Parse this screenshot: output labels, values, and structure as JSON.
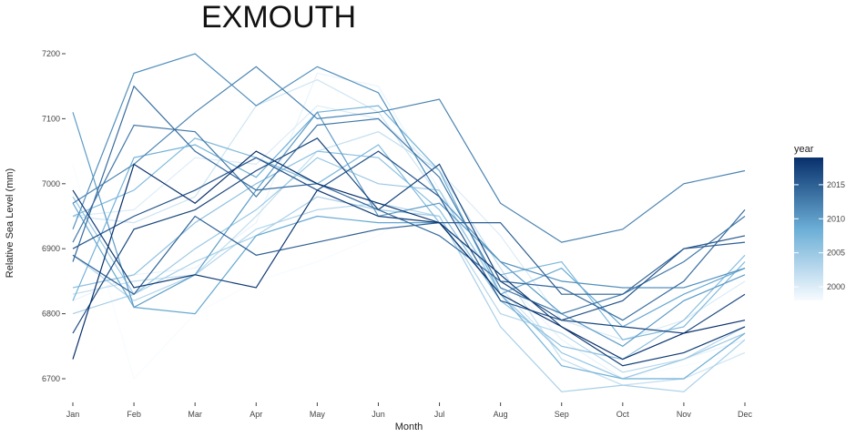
{
  "chart_data": {
    "type": "line",
    "title": "EXMOUTH",
    "xlabel": "Month",
    "ylabel": "Relative Sea Level (mm)",
    "categories": [
      "Jan",
      "Feb",
      "Mar",
      "Apr",
      "May",
      "Jun",
      "Jul",
      "Aug",
      "Sep",
      "Oct",
      "Nov",
      "Dec"
    ],
    "ylim": [
      6670,
      7230
    ],
    "yticks": [
      6700,
      6800,
      6900,
      7000,
      7100,
      7200
    ],
    "grid": false,
    "legend": {
      "title": "year",
      "position": "right",
      "type": "colorbar",
      "ticks": [
        2000,
        2005,
        2010,
        2015
      ],
      "range": [
        1998,
        2019
      ],
      "color_low": "#f7fbff",
      "color_high": "#08306b"
    },
    "series": [
      {
        "year": 1998,
        "values": [
          7030,
          6700,
          6800,
          6850,
          6880,
          6920,
          6980,
          6880,
          6760,
          6700,
          6720,
          6740
        ]
      },
      {
        "year": 1999,
        "values": [
          6820,
          6860,
          6870,
          6940,
          7170,
          7150,
          6990,
          6860,
          6760,
          6700,
          6730,
          6760
        ]
      },
      {
        "year": 2000,
        "values": [
          6950,
          6960,
          7040,
          7030,
          7120,
          7100,
          7020,
          6920,
          6790,
          6760,
          6790,
          6850
        ]
      },
      {
        "year": 2001,
        "values": [
          6950,
          6940,
          6980,
          7120,
          7160,
          7110,
          6980,
          6840,
          6740,
          6700,
          6700,
          6740
        ]
      },
      {
        "year": 2002,
        "values": [
          6830,
          6850,
          6860,
          6950,
          7050,
          7080,
          7020,
          6870,
          6730,
          6690,
          6700,
          6770
        ]
      },
      {
        "year": 2003,
        "values": [
          6890,
          6820,
          6860,
          6930,
          6960,
          6970,
          6950,
          6800,
          6770,
          6710,
          6730,
          6780
        ]
      },
      {
        "year": 2004,
        "values": [
          6800,
          6830,
          6880,
          6920,
          6980,
          6960,
          6950,
          6780,
          6680,
          6690,
          6680,
          6760
        ]
      },
      {
        "year": 2005,
        "values": [
          6980,
          6830,
          6900,
          6960,
          7040,
          7000,
          6990,
          6830,
          6740,
          6700,
          6730,
          6770
        ]
      },
      {
        "year": 2006,
        "values": [
          6840,
          6860,
          6940,
          7000,
          7050,
          7040,
          6960,
          6820,
          6750,
          6730,
          6790,
          6890
        ]
      },
      {
        "year": 2007,
        "values": [
          6950,
          6990,
          7070,
          7040,
          7000,
          7060,
          6940,
          6860,
          6880,
          6760,
          6780,
          6880
        ]
      },
      {
        "year": 2008,
        "values": [
          6820,
          7040,
          7060,
          7010,
          7110,
          7120,
          7020,
          6830,
          6720,
          6700,
          6700,
          6770
        ]
      },
      {
        "year": 2009,
        "values": [
          6970,
          6810,
          6800,
          6920,
          6950,
          6940,
          6940,
          6830,
          6870,
          6780,
          6830,
          6870
        ]
      },
      {
        "year": 2010,
        "values": [
          7110,
          6810,
          6860,
          6990,
          7110,
          6950,
          6970,
          6880,
          6800,
          6750,
          6820,
          6860
        ]
      },
      {
        "year": 2011,
        "values": [
          6930,
          7170,
          7200,
          7120,
          7180,
          7140,
          6980,
          6880,
          6850,
          6840,
          6840,
          6870
        ]
      },
      {
        "year": 2012,
        "values": [
          6970,
          7030,
          7110,
          7180,
          7100,
          7110,
          7130,
          6970,
          6910,
          6930,
          7000,
          7020
        ]
      },
      {
        "year": 2013,
        "values": [
          6910,
          7090,
          7080,
          6980,
          7090,
          7100,
          7010,
          6840,
          6800,
          6830,
          6880,
          6950
        ]
      },
      {
        "year": 2014,
        "values": [
          6880,
          7150,
          7050,
          6990,
          7000,
          6960,
          6920,
          6850,
          6840,
          6790,
          6850,
          6960
        ]
      },
      {
        "year": 2015,
        "values": [
          6890,
          6830,
          6950,
          6890,
          6910,
          6930,
          6940,
          6940,
          6830,
          6830,
          6900,
          6910
        ]
      },
      {
        "year": 2016,
        "values": [
          6900,
          6950,
          6990,
          7040,
          6990,
          7050,
          6980,
          6820,
          6790,
          6820,
          6900,
          6920
        ]
      },
      {
        "year": 2017,
        "values": [
          6770,
          6930,
          6960,
          7020,
          7070,
          6960,
          7030,
          6850,
          6790,
          6780,
          6770,
          6830
        ]
      },
      {
        "year": 2018,
        "values": [
          6990,
          6840,
          6860,
          6840,
          6990,
          6950,
          6940,
          6860,
          6780,
          6720,
          6740,
          6780
        ]
      },
      {
        "year": 2019,
        "values": [
          6730,
          7030,
          6970,
          7050,
          7000,
          6970,
          6940,
          6830,
          6780,
          6730,
          6770,
          6790
        ]
      }
    ]
  }
}
